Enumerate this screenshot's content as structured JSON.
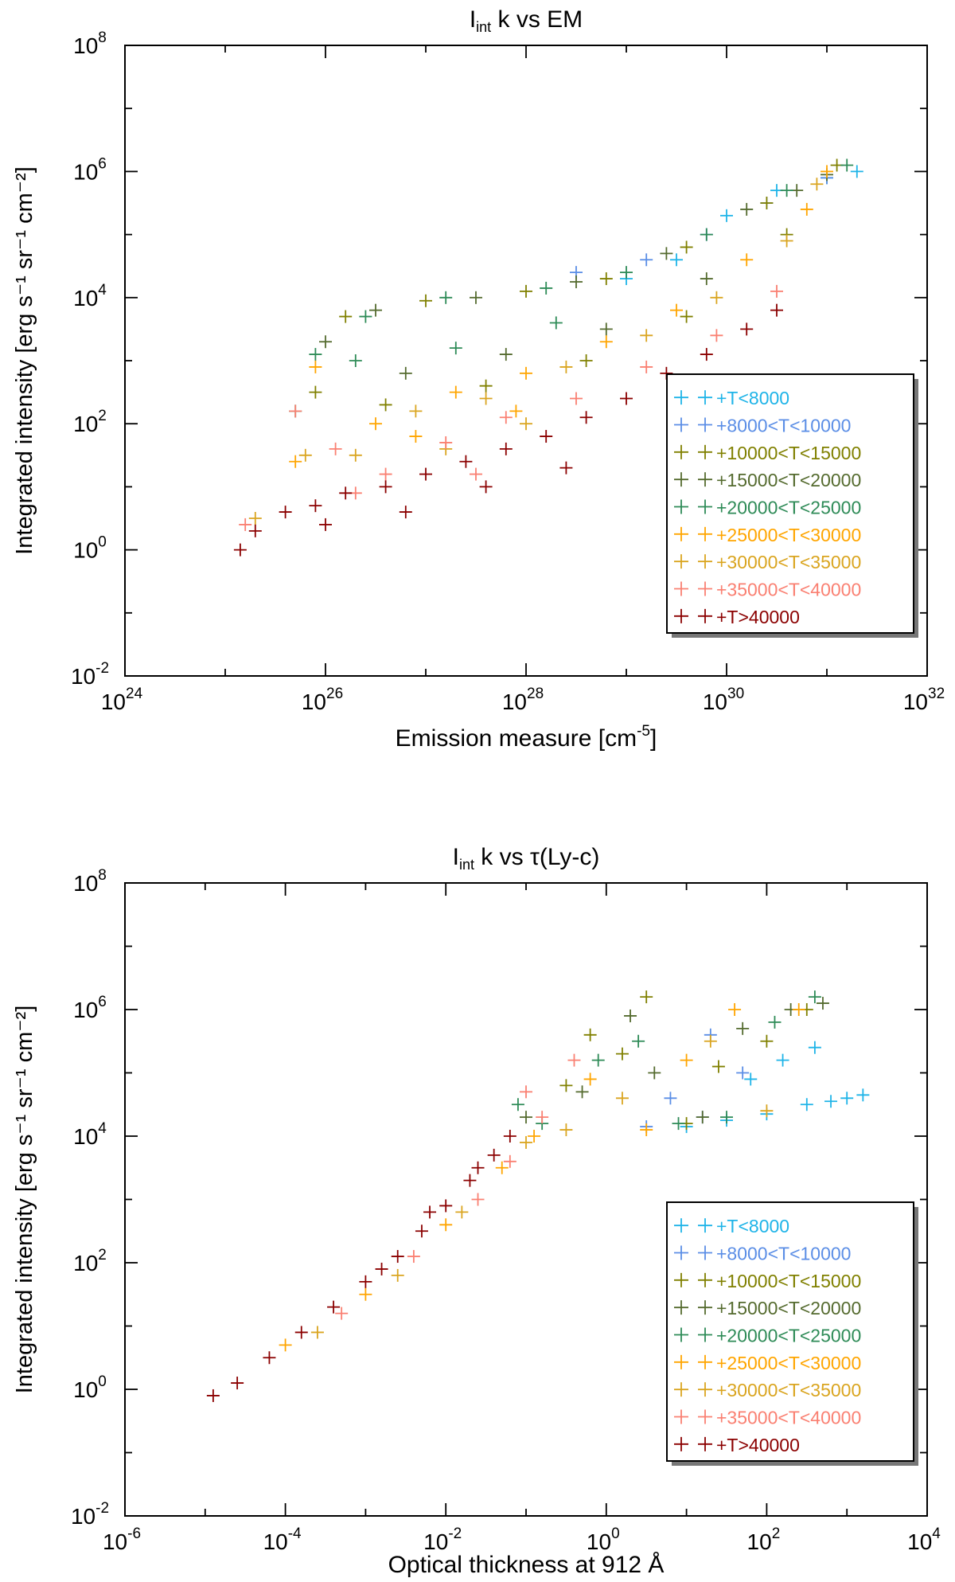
{
  "chart_data": [
    {
      "type": "scatter",
      "title_main": "I",
      "title_sub": "int",
      "title_rest": " k vs EM",
      "xlabel_main": "Emission measure [cm",
      "xlabel_sup": "-5",
      "xlabel_end": "]",
      "ylabel": "Integrated intensity [erg s⁻¹ sr⁻¹ cm⁻²]",
      "xscale": "log",
      "yscale": "log",
      "xlim_exp": [
        24,
        32
      ],
      "ylim_exp": [
        -2,
        8
      ],
      "x_tick_exponents": [
        24,
        26,
        28,
        30,
        32
      ],
      "y_tick_exponents": [
        -2,
        0,
        2,
        4,
        6,
        8
      ],
      "legend_position": "lower-right",
      "series": [
        {
          "name": "+T<8000",
          "color": "#1fb4e8",
          "points": [
            [
              29.0,
              4.3
            ],
            [
              29.5,
              4.6
            ],
            [
              30.0,
              5.3
            ],
            [
              30.5,
              5.7
            ],
            [
              31.0,
              5.9
            ],
            [
              31.3,
              6.0
            ]
          ]
        },
        {
          "name": "+8000<T<10000",
          "color": "#5b8ee6",
          "points": [
            [
              28.5,
              4.4
            ],
            [
              29.2,
              4.6
            ],
            [
              29.8,
              5.0
            ],
            [
              30.4,
              5.5
            ],
            [
              31.0,
              5.9
            ]
          ]
        },
        {
          "name": "+10000<T<15000",
          "color": "#808000",
          "points": [
            [
              26.2,
              3.7
            ],
            [
              27.0,
              3.95
            ],
            [
              28.0,
              4.1
            ],
            [
              28.8,
              4.3
            ],
            [
              29.6,
              4.8
            ],
            [
              30.4,
              5.5
            ],
            [
              31.1,
              6.1
            ],
            [
              25.9,
              2.5
            ],
            [
              26.6,
              2.3
            ],
            [
              27.6,
              2.6
            ],
            [
              28.6,
              3.0
            ],
            [
              29.6,
              3.7
            ],
            [
              30.6,
              5.0
            ]
          ]
        },
        {
          "name": "+15000<T<20000",
          "color": "#556b2f",
          "points": [
            [
              26.0,
              3.3
            ],
            [
              26.5,
              3.8
            ],
            [
              27.5,
              4.0
            ],
            [
              28.5,
              4.25
            ],
            [
              29.4,
              4.7
            ],
            [
              30.2,
              5.4
            ],
            [
              31.0,
              5.95
            ],
            [
              26.8,
              2.8
            ],
            [
              27.8,
              3.1
            ],
            [
              28.8,
              3.5
            ],
            [
              29.8,
              4.3
            ],
            [
              30.7,
              5.7
            ]
          ]
        },
        {
          "name": "+20000<T<25000",
          "color": "#2e8b57",
          "points": [
            [
              25.9,
              3.1
            ],
            [
              26.4,
              3.7
            ],
            [
              27.2,
              4.0
            ],
            [
              28.2,
              4.15
            ],
            [
              29.0,
              4.4
            ],
            [
              29.8,
              5.0
            ],
            [
              30.6,
              5.7
            ],
            [
              31.2,
              6.1
            ],
            [
              25.7,
              2.2
            ],
            [
              26.3,
              3.0
            ],
            [
              27.3,
              3.2
            ],
            [
              28.3,
              3.6
            ]
          ]
        },
        {
          "name": "+25000<T<30000",
          "color": "#ffa500",
          "points": [
            [
              25.7,
              1.4
            ],
            [
              25.9,
              2.9
            ],
            [
              26.5,
              2.0
            ],
            [
              27.3,
              2.5
            ],
            [
              28.0,
              2.8
            ],
            [
              28.8,
              3.3
            ],
            [
              29.5,
              3.8
            ],
            [
              30.2,
              4.6
            ],
            [
              30.8,
              5.4
            ],
            [
              31.0,
              6.0
            ],
            [
              26.9,
              1.8
            ],
            [
              27.9,
              2.2
            ]
          ]
        },
        {
          "name": "+30000<T<35000",
          "color": "#daa520",
          "points": [
            [
              25.3,
              0.5
            ],
            [
              25.8,
              1.5
            ],
            [
              26.3,
              1.5
            ],
            [
              26.9,
              2.2
            ],
            [
              27.6,
              2.4
            ],
            [
              28.4,
              2.9
            ],
            [
              29.2,
              3.4
            ],
            [
              29.9,
              4.0
            ],
            [
              30.6,
              4.9
            ],
            [
              30.9,
              5.8
            ],
            [
              27.2,
              1.6
            ],
            [
              28.0,
              2.0
            ]
          ]
        },
        {
          "name": "+35000<T<40000",
          "color": "#fa8072",
          "points": [
            [
              25.2,
              0.4
            ],
            [
              25.7,
              2.2
            ],
            [
              26.1,
              1.6
            ],
            [
              26.6,
              1.2
            ],
            [
              27.2,
              1.7
            ],
            [
              27.8,
              2.1
            ],
            [
              28.5,
              2.4
            ],
            [
              29.2,
              2.9
            ],
            [
              29.9,
              3.4
            ],
            [
              30.5,
              4.1
            ],
            [
              26.3,
              0.9
            ],
            [
              27.5,
              1.2
            ]
          ]
        },
        {
          "name": "+T>40000",
          "color": "#8b0000",
          "points": [
            [
              25.15,
              0.0
            ],
            [
              25.3,
              0.3
            ],
            [
              25.6,
              0.6
            ],
            [
              25.9,
              0.7
            ],
            [
              26.2,
              0.9
            ],
            [
              26.6,
              1.0
            ],
            [
              27.0,
              1.2
            ],
            [
              27.4,
              1.4
            ],
            [
              27.8,
              1.6
            ],
            [
              28.2,
              1.8
            ],
            [
              28.6,
              2.1
            ],
            [
              29.0,
              2.4
            ],
            [
              29.4,
              2.8
            ],
            [
              29.8,
              3.1
            ],
            [
              30.2,
              3.5
            ],
            [
              30.5,
              3.8
            ],
            [
              26.0,
              0.4
            ],
            [
              26.8,
              0.6
            ],
            [
              27.6,
              1.0
            ],
            [
              28.4,
              1.3
            ]
          ]
        }
      ]
    },
    {
      "type": "scatter",
      "title_main": "I",
      "title_sub": "int",
      "title_rest": " k vs τ(Ly-c)",
      "xlabel_main": "Optical thickness at 912 Å",
      "xlabel_sup": "",
      "xlabel_end": "",
      "ylabel": "Integrated intensity [erg s⁻¹ sr⁻¹ cm⁻²]",
      "xscale": "log",
      "yscale": "log",
      "xlim_exp": [
        -6,
        4
      ],
      "ylim_exp": [
        -2,
        8
      ],
      "x_tick_exponents": [
        -6,
        -4,
        -2,
        0,
        2,
        4
      ],
      "y_tick_exponents": [
        -2,
        0,
        2,
        4,
        6,
        8
      ],
      "legend_position": "lower-right",
      "series": [
        {
          "name": "+T<8000",
          "color": "#1fb4e8",
          "points": [
            [
              1.0,
              4.15
            ],
            [
              1.5,
              4.25
            ],
            [
              2.0,
              4.35
            ],
            [
              2.5,
              4.5
            ],
            [
              2.8,
              4.55
            ],
            [
              3.0,
              4.6
            ],
            [
              3.2,
              4.65
            ],
            [
              1.8,
              4.9
            ],
            [
              2.2,
              5.2
            ],
            [
              2.6,
              5.4
            ]
          ]
        },
        {
          "name": "+8000<T<10000",
          "color": "#5b8ee6",
          "points": [
            [
              0.5,
              4.15
            ],
            [
              1.2,
              4.3
            ],
            [
              1.7,
              5.0
            ],
            [
              1.3,
              5.6
            ],
            [
              0.8,
              4.6
            ]
          ]
        },
        {
          "name": "+10000<T<15000",
          "color": "#808000",
          "points": [
            [
              -0.5,
              4.8
            ],
            [
              0.2,
              5.3
            ],
            [
              0.5,
              6.2
            ],
            [
              1.0,
              4.2
            ],
            [
              1.4,
              5.1
            ],
            [
              2.0,
              5.5
            ],
            [
              2.5,
              6.0
            ],
            [
              -0.2,
              5.6
            ]
          ]
        },
        {
          "name": "+15000<T<20000",
          "color": "#556b2f",
          "points": [
            [
              -0.3,
              4.7
            ],
            [
              0.3,
              5.9
            ],
            [
              0.6,
              5.0
            ],
            [
              1.2,
              4.3
            ],
            [
              1.7,
              5.7
            ],
            [
              2.3,
              6.0
            ],
            [
              2.7,
              6.1
            ],
            [
              -1.0,
              4.3
            ]
          ]
        },
        {
          "name": "+20000<T<25000",
          "color": "#2e8b57",
          "points": [
            [
              -0.8,
              4.2
            ],
            [
              -0.1,
              5.2
            ],
            [
              0.4,
              5.5
            ],
            [
              0.9,
              4.2
            ],
            [
              1.5,
              4.3
            ],
            [
              2.1,
              5.8
            ],
            [
              2.6,
              6.2
            ],
            [
              -1.1,
              4.5
            ]
          ]
        },
        {
          "name": "+25000<T<30000",
          "color": "#ffa500",
          "points": [
            [
              -4.0,
              0.7
            ],
            [
              -3.0,
              1.5
            ],
            [
              -2.0,
              2.6
            ],
            [
              -1.3,
              3.5
            ],
            [
              -0.9,
              4.0
            ],
            [
              -0.2,
              4.9
            ],
            [
              0.5,
              4.1
            ],
            [
              1.0,
              5.2
            ],
            [
              1.6,
              6.0
            ],
            [
              2.4,
              6.0
            ]
          ]
        },
        {
          "name": "+30000<T<35000",
          "color": "#daa520",
          "points": [
            [
              -3.6,
              0.9
            ],
            [
              -2.6,
              1.8
            ],
            [
              -1.8,
              2.8
            ],
            [
              -1.0,
              3.9
            ],
            [
              -0.5,
              4.1
            ],
            [
              0.2,
              4.6
            ],
            [
              1.3,
              5.5
            ],
            [
              2.0,
              4.4
            ]
          ]
        },
        {
          "name": "+35000<T<40000",
          "color": "#fa8072",
          "points": [
            [
              -3.3,
              1.2
            ],
            [
              -2.4,
              2.1
            ],
            [
              -1.6,
              3.0
            ],
            [
              -1.2,
              3.6
            ],
            [
              -0.8,
              4.3
            ],
            [
              -1.0,
              4.7
            ],
            [
              -0.4,
              5.2
            ]
          ]
        },
        {
          "name": "+T>40000",
          "color": "#8b0000",
          "points": [
            [
              -4.9,
              -0.1
            ],
            [
              -4.6,
              0.1
            ],
            [
              -4.2,
              0.5
            ],
            [
              -3.8,
              0.9
            ],
            [
              -3.4,
              1.3
            ],
            [
              -3.0,
              1.7
            ],
            [
              -2.6,
              2.1
            ],
            [
              -2.3,
              2.5
            ],
            [
              -2.0,
              2.9
            ],
            [
              -1.7,
              3.3
            ],
            [
              -1.4,
              3.7
            ],
            [
              -1.2,
              4.0
            ],
            [
              -2.8,
              1.9
            ],
            [
              -2.2,
              2.8
            ],
            [
              -1.6,
              3.5
            ]
          ]
        }
      ]
    }
  ]
}
